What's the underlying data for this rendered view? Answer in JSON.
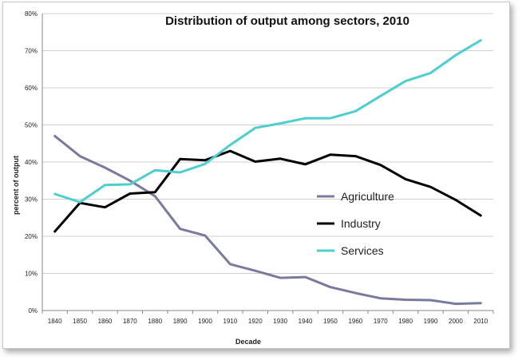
{
  "chart_data": {
    "type": "line",
    "title": "Distribution of output among sectors, 2010",
    "xlabel": "Decade",
    "ylabel": "percent of output",
    "categories": [
      "1840",
      "1850",
      "1860",
      "1870",
      "1880",
      "1890",
      "1900",
      "1910",
      "1920",
      "1930",
      "1940",
      "1950",
      "1960",
      "1970",
      "1980",
      "1990",
      "2000",
      "2010"
    ],
    "ylim": [
      0,
      80
    ],
    "yticks": [
      "0%",
      "10%",
      "20%",
      "30%",
      "40%",
      "50%",
      "60%",
      "70%",
      "80%"
    ],
    "grid": true,
    "legend_position": "center-right",
    "series": [
      {
        "name": "Agriculture",
        "color": "#7a7aa0",
        "values": [
          47,
          41.6,
          38.5,
          35,
          30.8,
          22,
          20.2,
          12.5,
          10.7,
          8.8,
          9,
          6.3,
          4.7,
          3.3,
          2.9,
          2.8,
          1.8,
          2
        ]
      },
      {
        "name": "Industry",
        "color": "#000000",
        "values": [
          21.3,
          29,
          27.8,
          31.5,
          31.9,
          40.8,
          40.5,
          43,
          40.1,
          40.9,
          39.4,
          42,
          41.6,
          39.2,
          35.4,
          33.3,
          29.8,
          25.6
        ]
      },
      {
        "name": "Services",
        "color": "#4dcfcf",
        "values": [
          31.4,
          29.2,
          33.8,
          34,
          37.8,
          37.2,
          39.5,
          44.6,
          49.2,
          50.4,
          51.8,
          51.8,
          53.7,
          57.8,
          61.8,
          64,
          68.8,
          72.8
        ]
      }
    ]
  }
}
